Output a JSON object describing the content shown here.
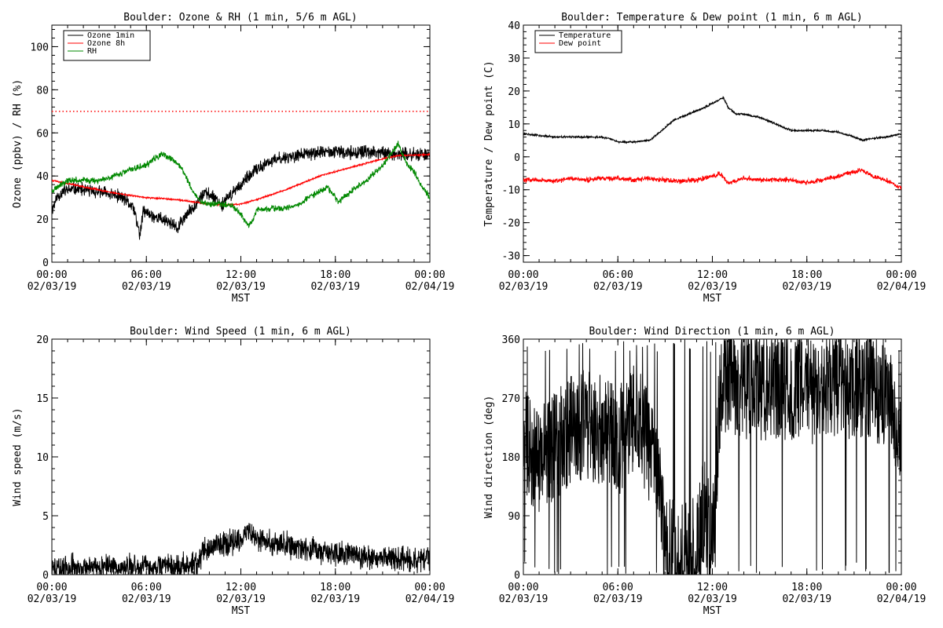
{
  "chart_data": [
    {
      "type": "line",
      "title": "Boulder: Ozone & RH (1 min, 5/6 m AGL)",
      "xlabel": "MST",
      "ylabel": "Ozone (ppbv) / RH (%)",
      "xticks": [
        {
          "time": "00:00",
          "date": "02/03/19",
          "h": 0
        },
        {
          "time": "06:00",
          "date": "02/03/19",
          "h": 6
        },
        {
          "time": "12:00",
          "date": "02/03/19",
          "h": 12
        },
        {
          "time": "18:00",
          "date": "02/03/19",
          "h": 18
        },
        {
          "time": "00:00",
          "date": "02/04/19",
          "h": 24
        }
      ],
      "xlim": [
        0,
        24
      ],
      "ylim": [
        0,
        110
      ],
      "yticks": [
        0,
        20,
        40,
        60,
        80,
        100
      ],
      "legend": "top-left",
      "reference_lines": [
        {
          "y": 70,
          "color": "#ff0000",
          "style": "dotted"
        }
      ],
      "series": [
        {
          "name": "Ozone 1min",
          "color": "#000000",
          "noise": 2.5,
          "seed": 11,
          "x": [
            0,
            0.3,
            0.7,
            1.5,
            2.5,
            3.5,
            4.5,
            5.2,
            5.6,
            5.8,
            6.2,
            7,
            7.6,
            8,
            8.3,
            8.7,
            9.2,
            9.7,
            10.2,
            10.8,
            11.2,
            11.7,
            12.3,
            13,
            14,
            15,
            16,
            17,
            18,
            19,
            20,
            21,
            22,
            23,
            24
          ],
          "y": [
            24,
            30,
            33,
            34,
            33,
            32,
            30,
            25,
            12,
            24,
            22,
            20,
            18,
            15,
            20,
            23,
            28,
            32,
            31,
            27,
            30,
            34,
            38,
            43,
            47,
            49,
            50,
            51,
            51,
            51,
            51,
            51,
            50,
            50,
            50
          ]
        },
        {
          "name": "Ozone 8h",
          "color": "#ff0000",
          "noise": 0.3,
          "seed": 5,
          "x": [
            0,
            2,
            4,
            6,
            8,
            10,
            11,
            12,
            13,
            15,
            17,
            19,
            21,
            22,
            24
          ],
          "y": [
            38,
            35,
            32,
            30,
            29,
            27,
            26.5,
            27,
            29,
            34,
            40,
            44,
            48,
            49.5,
            50
          ]
        },
        {
          "name": "RH",
          "color": "#008800",
          "noise": 1.2,
          "seed": 23,
          "x": [
            0,
            0.5,
            1,
            2,
            3,
            4,
            5,
            5.5,
            6,
            6.5,
            7,
            7.5,
            8,
            8.5,
            9,
            9.5,
            10,
            11,
            11.5,
            12,
            12.5,
            12.8,
            13,
            14,
            15,
            15.8,
            16.5,
            17.5,
            18.2,
            19,
            20,
            21,
            22,
            22.5,
            23,
            23.5,
            24
          ],
          "y": [
            33,
            36,
            38,
            38,
            38,
            40,
            43,
            44,
            45,
            48,
            50,
            48,
            46,
            40,
            32,
            28,
            27,
            27,
            26,
            22,
            17,
            20,
            24,
            25,
            25,
            27,
            31,
            35,
            28,
            33,
            38,
            45,
            55,
            46,
            42,
            35,
            30
          ]
        }
      ]
    },
    {
      "type": "line",
      "title": "Boulder: Temperature & Dew point (1 min, 6 m AGL)",
      "xlabel": "MST",
      "ylabel": "Temperature / Dew point (C)",
      "xticks": [
        {
          "time": "00:00",
          "date": "02/03/19",
          "h": 0
        },
        {
          "time": "06:00",
          "date": "02/03/19",
          "h": 6
        },
        {
          "time": "12:00",
          "date": "02/03/19",
          "h": 12
        },
        {
          "time": "18:00",
          "date": "02/03/19",
          "h": 18
        },
        {
          "time": "00:00",
          "date": "02/04/19",
          "h": 24
        }
      ],
      "xlim": [
        0,
        24
      ],
      "ylim": [
        -32,
        40
      ],
      "yticks": [
        -30,
        -20,
        -10,
        0,
        10,
        20,
        30,
        40
      ],
      "legend": "top-left",
      "series": [
        {
          "name": "Temperature",
          "color": "#000000",
          "noise": 0.25,
          "seed": 31,
          "x": [
            0,
            1,
            2,
            3,
            4,
            5,
            5.5,
            6,
            7,
            8,
            8.8,
            9.5,
            10.5,
            11.5,
            12.3,
            12.7,
            13,
            13.5,
            14,
            15,
            16,
            16.5,
            17,
            18,
            19,
            20,
            21,
            21.5,
            22,
            23,
            24
          ],
          "y": [
            7,
            6.5,
            6,
            6,
            6,
            6,
            5.5,
            4.5,
            4.5,
            5,
            8,
            11,
            13,
            15,
            17,
            18,
            15,
            13,
            13,
            12,
            10,
            9,
            8,
            8,
            8,
            7.5,
            6,
            5,
            5.5,
            6,
            7
          ]
        },
        {
          "name": "Dew point",
          "color": "#ff0000",
          "noise": 0.6,
          "seed": 47,
          "x": [
            0,
            1,
            2,
            3,
            4,
            5,
            6,
            7,
            8,
            9,
            10,
            11,
            12,
            12.5,
            13,
            14,
            15,
            16,
            17,
            18,
            19,
            20,
            21,
            21.5,
            22,
            23,
            24
          ],
          "y": [
            -7,
            -7,
            -7.5,
            -6.5,
            -7,
            -6.5,
            -6.5,
            -7,
            -6.5,
            -7,
            -7.5,
            -7,
            -6,
            -5,
            -8,
            -6.5,
            -7,
            -7,
            -7,
            -8,
            -7,
            -6,
            -4.5,
            -4,
            -5.5,
            -7,
            -9.5
          ]
        }
      ]
    },
    {
      "type": "line",
      "title": "Boulder: Wind Speed (1 min, 6 m AGL)",
      "xlabel": "MST",
      "ylabel": "Wind speed (m/s)",
      "xticks": [
        {
          "time": "00:00",
          "date": "02/03/19",
          "h": 0
        },
        {
          "time": "06:00",
          "date": "02/03/19",
          "h": 6
        },
        {
          "time": "12:00",
          "date": "02/03/19",
          "h": 12
        },
        {
          "time": "18:00",
          "date": "02/03/19",
          "h": 18
        },
        {
          "time": "00:00",
          "date": "02/04/19",
          "h": 24
        }
      ],
      "xlim": [
        0,
        24
      ],
      "ylim": [
        0,
        20
      ],
      "yticks": [
        0,
        5,
        10,
        15,
        20
      ],
      "series": [
        {
          "color": "#000000",
          "noise": 0.9,
          "seed": 59,
          "clip_min": 0,
          "x": [
            0,
            2,
            4,
            6,
            8,
            9.2,
            9.6,
            10.5,
            11.5,
            12,
            12.5,
            13,
            14,
            15,
            16,
            17,
            18,
            19,
            20,
            21,
            22,
            23,
            24
          ],
          "y": [
            0.6,
            0.6,
            0.7,
            0.7,
            0.7,
            0.9,
            2,
            2.5,
            2.8,
            3.2,
            3.8,
            3,
            2.7,
            2.5,
            2.2,
            2,
            1.8,
            1.8,
            1.6,
            1.5,
            1.4,
            1.3,
            1.3
          ]
        }
      ]
    },
    {
      "type": "line",
      "title": "Boulder: Wind Direction (1 min, 6 m AGL)",
      "xlabel": "MST",
      "ylabel": "Wind direction (deg)",
      "xticks": [
        {
          "time": "00:00",
          "date": "02/03/19",
          "h": 0
        },
        {
          "time": "06:00",
          "date": "02/03/19",
          "h": 6
        },
        {
          "time": "12:00",
          "date": "02/03/19",
          "h": 12
        },
        {
          "time": "18:00",
          "date": "02/03/19",
          "h": 18
        },
        {
          "time": "00:00",
          "date": "02/04/19",
          "h": 24
        }
      ],
      "xlim": [
        0,
        24
      ],
      "ylim": [
        0,
        360
      ],
      "yticks": [
        0,
        90,
        180,
        270,
        360
      ],
      "series": [
        {
          "color": "#000000",
          "noise": 85,
          "seed": 71,
          "clip_min": 0,
          "clip_max": 360,
          "spikes": true,
          "x": [
            0,
            1,
            2,
            3,
            4,
            5,
            6,
            6.8,
            7.5,
            8.5,
            9,
            10,
            11,
            11.5,
            12,
            12.5,
            13,
            14,
            15,
            16,
            17,
            18,
            19,
            20,
            21,
            22,
            23,
            23.5,
            24
          ],
          "y": [
            200,
            180,
            200,
            220,
            230,
            220,
            200,
            240,
            230,
            150,
            40,
            25,
            40,
            100,
            40,
            280,
            300,
            290,
            290,
            280,
            290,
            280,
            290,
            290,
            290,
            290,
            280,
            240,
            230
          ]
        }
      ]
    }
  ]
}
